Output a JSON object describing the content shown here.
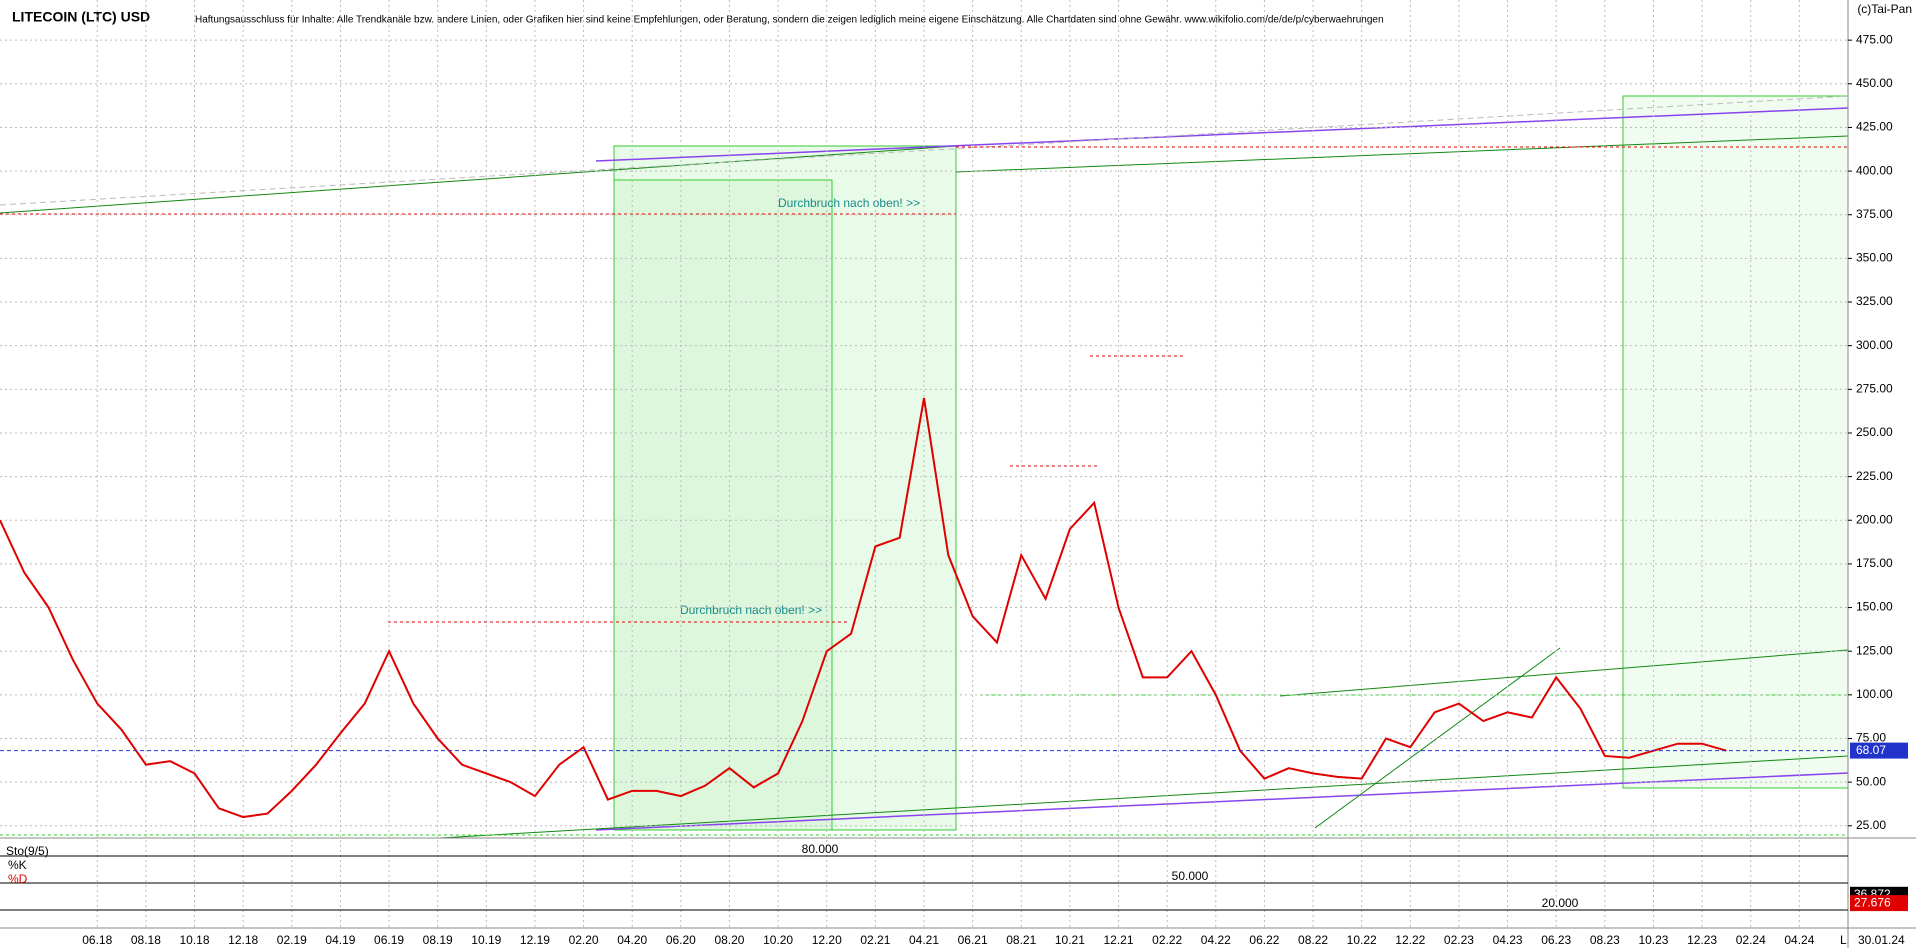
{
  "chart_data": [
    {
      "type": "line",
      "title": "LITECOIN (LTC) USD",
      "subtitle": "Haftungsausschluss für Inhalte: Alle Trendkanäle bzw. andere Linien, oder Grafiken hier sind keine Empfehlungen, oder Beratung, sondern die zeigen lediglich meine eigene Einschätzung. Alle Chartdaten sind ohne Gewähr.  www.wikifolio.com/de/de/p/cyberwaehrungen",
      "source": "(c)Tai-Pan",
      "annotations": [
        "Durchbruch nach oben! >>",
        "Durchbruch nach oben! >>"
      ],
      "last_price": 68.07,
      "last_price_label": "68.07",
      "last_date": "30.01.24",
      "scale_label": "L",
      "x": [
        "2018-02",
        "2018-03",
        "2018-04",
        "2018-05",
        "2018-06",
        "2018-07",
        "2018-08",
        "2018-09",
        "2018-10",
        "2018-11",
        "2018-12",
        "2019-01",
        "2019-02",
        "2019-03",
        "2019-04",
        "2019-05",
        "2019-06",
        "2019-07",
        "2019-08",
        "2019-09",
        "2019-10",
        "2019-11",
        "2019-12",
        "2020-01",
        "2020-02",
        "2020-03",
        "2020-04",
        "2020-05",
        "2020-06",
        "2020-07",
        "2020-08",
        "2020-09",
        "2020-10",
        "2020-11",
        "2020-12",
        "2021-01",
        "2021-02",
        "2021-03",
        "2021-04",
        "2021-05",
        "2021-06",
        "2021-07",
        "2021-08",
        "2021-09",
        "2021-10",
        "2021-11",
        "2021-12",
        "2022-01",
        "2022-02",
        "2022-03",
        "2022-04",
        "2022-05",
        "2022-06",
        "2022-07",
        "2022-08",
        "2022-09",
        "2022-10",
        "2022-11",
        "2022-12",
        "2023-01",
        "2023-02",
        "2023-03",
        "2023-04",
        "2023-05",
        "2023-06",
        "2023-07",
        "2023-08",
        "2023-09",
        "2023-10",
        "2023-11",
        "2023-12",
        "2024-01"
      ],
      "series": [
        {
          "name": "LTC",
          "color": "#e00000",
          "values": [
            200,
            170,
            150,
            120,
            95,
            80,
            60,
            62,
            55,
            35,
            30,
            32,
            45,
            60,
            78,
            95,
            125,
            95,
            75,
            60,
            55,
            50,
            42,
            60,
            70,
            40,
            45,
            45,
            42,
            48,
            58,
            47,
            55,
            85,
            125,
            135,
            185,
            190,
            270,
            180,
            145,
            130,
            180,
            155,
            195,
            210,
            150,
            110,
            110,
            125,
            100,
            68,
            52,
            58,
            55,
            53,
            52,
            75,
            70,
            90,
            95,
            85,
            90,
            87,
            110,
            92,
            65,
            64,
            68,
            72,
            72,
            68
          ]
        }
      ],
      "xlim": [
        "2018-02",
        "2024-06"
      ],
      "xticks": [
        {
          "value": "2018-06",
          "label": "06.18"
        },
        {
          "value": "2018-08",
          "label": "08.18"
        },
        {
          "value": "2018-10",
          "label": "10.18"
        },
        {
          "value": "2018-12",
          "label": "12.18"
        },
        {
          "value": "2019-02",
          "label": "02.19"
        },
        {
          "value": "2019-04",
          "label": "04.19"
        },
        {
          "value": "2019-06",
          "label": "06.19"
        },
        {
          "value": "2019-08",
          "label": "08.19"
        },
        {
          "value": "2019-10",
          "label": "10.19"
        },
        {
          "value": "2019-12",
          "label": "12.19"
        },
        {
          "value": "2020-02",
          "label": "02.20"
        },
        {
          "value": "2020-04",
          "label": "04.20"
        },
        {
          "value": "2020-06",
          "label": "06.20"
        },
        {
          "value": "2020-08",
          "label": "08.20"
        },
        {
          "value": "2020-10",
          "label": "10.20"
        },
        {
          "value": "2020-12",
          "label": "12.20"
        },
        {
          "value": "2021-02",
          "label": "02.21"
        },
        {
          "value": "2021-04",
          "label": "04.21"
        },
        {
          "value": "2021-06",
          "label": "06.21"
        },
        {
          "value": "2021-08",
          "label": "08.21"
        },
        {
          "value": "2021-10",
          "label": "10.21"
        },
        {
          "value": "2021-12",
          "label": "12.21"
        },
        {
          "value": "2022-02",
          "label": "02.22"
        },
        {
          "value": "2022-04",
          "label": "04.22"
        },
        {
          "value": "2022-06",
          "label": "06.22"
        },
        {
          "value": "2022-08",
          "label": "08.22"
        },
        {
          "value": "2022-10",
          "label": "10.22"
        },
        {
          "value": "2022-12",
          "label": "12.22"
        },
        {
          "value": "2023-02",
          "label": "02.23"
        },
        {
          "value": "2023-04",
          "label": "04.23"
        },
        {
          "value": "2023-06",
          "label": "06.23"
        },
        {
          "value": "2023-08",
          "label": "08.23"
        },
        {
          "value": "2023-10",
          "label": "10.23"
        },
        {
          "value": "2023-12",
          "label": "12.23"
        },
        {
          "value": "2024-02",
          "label": "02.24"
        },
        {
          "value": "2024-04",
          "label": "04.24"
        }
      ],
      "ylim": [
        18,
        498
      ],
      "yticks": [
        {
          "value": 25,
          "label": "25.00"
        },
        {
          "value": 50,
          "label": "50.00"
        },
        {
          "value": 75,
          "label": "75.00"
        },
        {
          "value": 100,
          "label": "100.00"
        },
        {
          "value": 125,
          "label": "125.00"
        },
        {
          "value": 150,
          "label": "150.00"
        },
        {
          "value": 175,
          "label": "175.00"
        },
        {
          "value": 200,
          "label": "200.00"
        },
        {
          "value": 225,
          "label": "225.00"
        },
        {
          "value": 250,
          "label": "250.00"
        },
        {
          "value": 275,
          "label": "275.00"
        },
        {
          "value": 300,
          "label": "300.00"
        },
        {
          "value": 325,
          "label": "325.00"
        },
        {
          "value": 350,
          "label": "350.00"
        },
        {
          "value": 375,
          "label": "375.00"
        },
        {
          "value": 400,
          "label": "400.00"
        },
        {
          "value": 425,
          "label": "425.00"
        },
        {
          "value": 450,
          "label": "450.00"
        },
        {
          "value": 475,
          "label": "475.00"
        }
      ],
      "grid": true
    },
    {
      "type": "indicator",
      "title": "Sto(9/5)",
      "series": [
        {
          "name": "%K",
          "color": "#000000",
          "last": 36.872,
          "last_label": "36.872"
        },
        {
          "name": "%D",
          "color": "#e00000",
          "last": 27.676,
          "last_label": "27.676"
        }
      ],
      "ylim": [
        0,
        100
      ],
      "yticks": [
        {
          "value": 20,
          "label": "20.000"
        },
        {
          "value": 50,
          "label": "50.000"
        },
        {
          "value": 80,
          "label": "80.000"
        }
      ]
    }
  ]
}
